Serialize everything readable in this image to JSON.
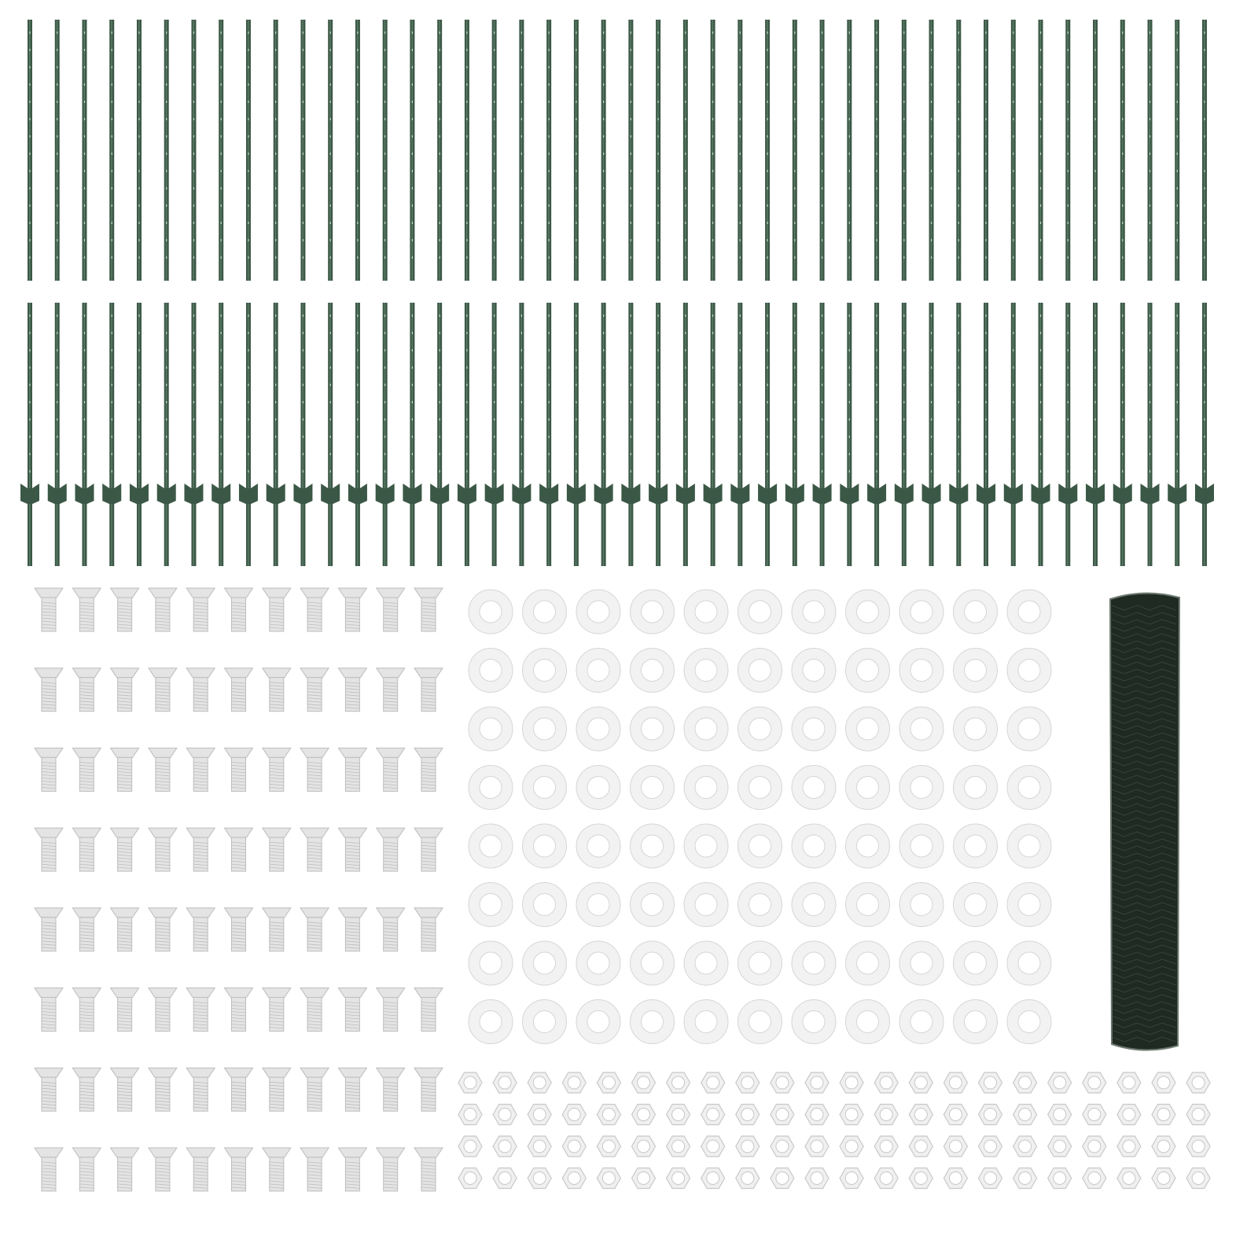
{
  "colors": {
    "post": "#3b5846",
    "post_highlight": "#5b7a66",
    "post_hole": "#c9d4cc",
    "bolt": "#e4e4e4",
    "bolt_shadow": "#bdbdbd",
    "washer": "#f2f2f2",
    "washer_edge": "#d6d6d6",
    "nut": "#f0f0f0",
    "nut_edge": "#c8c8c8",
    "mesh_roll": "#1f2a22",
    "mesh_edge": "#6f7a72"
  },
  "items": {
    "posts_row1": 44,
    "posts_row2_with_anchor": 44,
    "bolts": {
      "cols": 11,
      "rows": 8
    },
    "washers": {
      "cols": 11,
      "rows": 8
    },
    "nuts": {
      "cols": 22,
      "rows": 4
    },
    "mesh_rolls": 1
  }
}
